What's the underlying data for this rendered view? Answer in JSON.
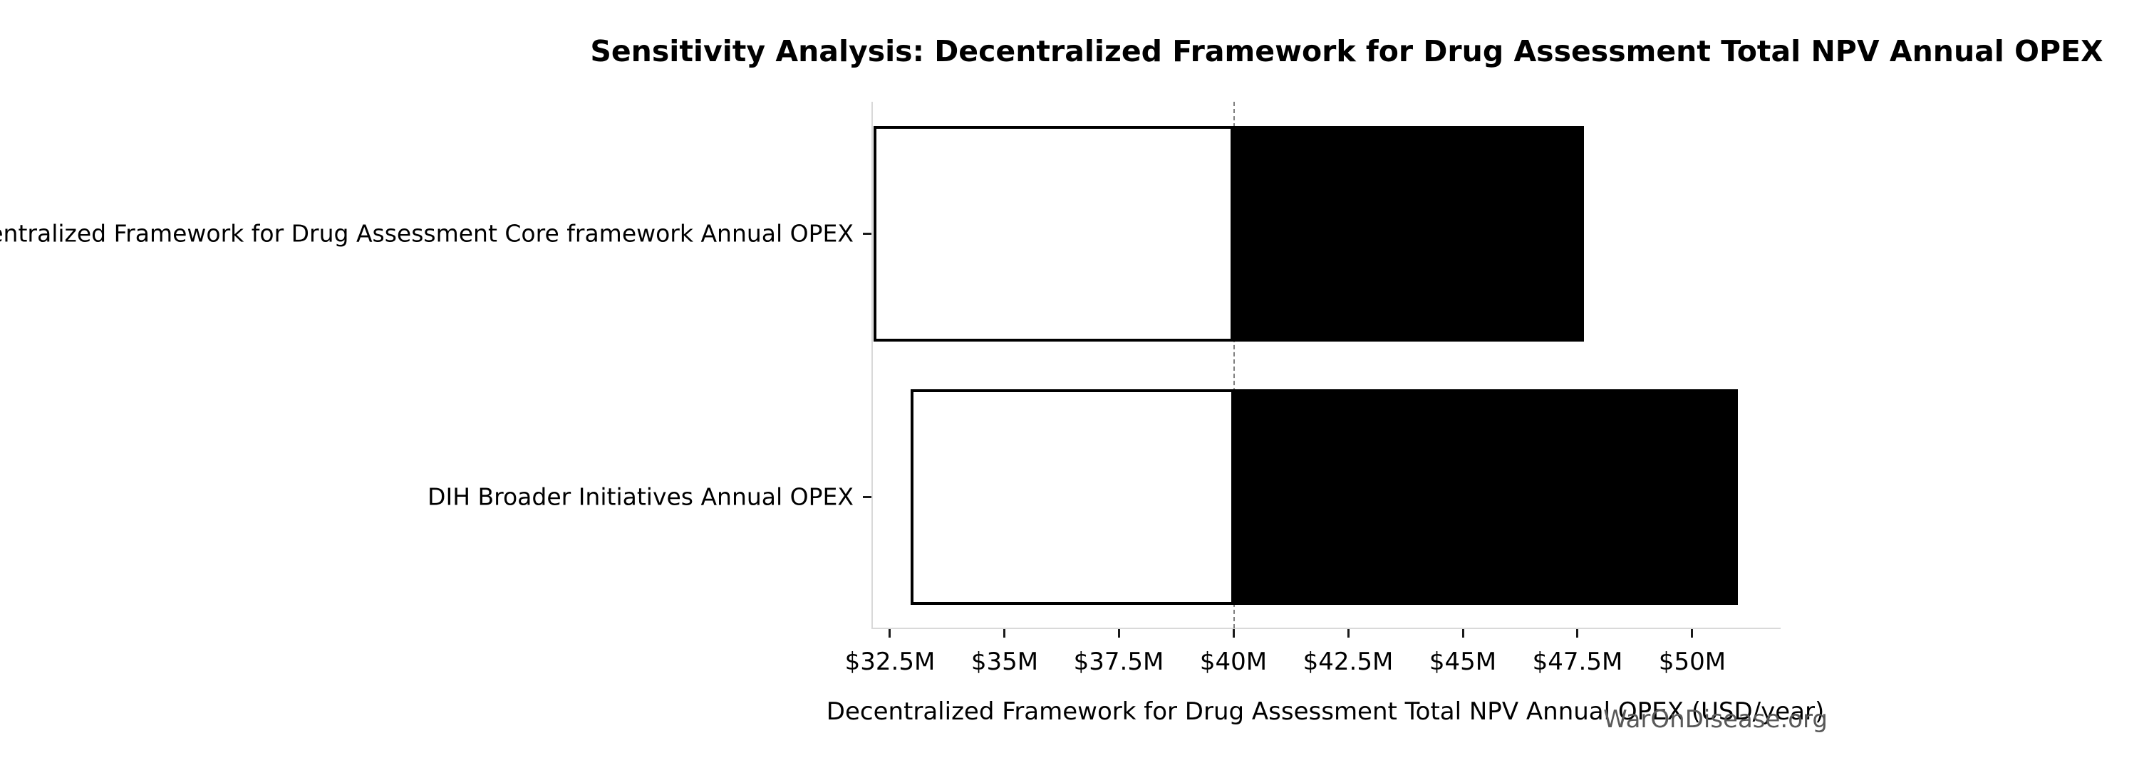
{
  "page": {
    "watermark": "WarOnDisease.org"
  },
  "chart_data": {
    "type": "bar",
    "orientation": "horizontal",
    "subtype": "tornado-sensitivity",
    "title": "Sensitivity Analysis: Decentralized Framework for Drug Assessment Total NPV Annual OPEX",
    "xlabel": "Decentralized Framework for Drug Assessment Total NPV Annual OPEX (USD/year)",
    "ylabel": "",
    "categories": [
      "Decentralized Framework for Drug Assessment Core framework Annual OPEX",
      "DIH Broader Initiatives Annual OPEX"
    ],
    "series": [
      {
        "name": "low-value-npv",
        "fill": "#ffffff",
        "values": [
          32.15,
          32.95
        ]
      },
      {
        "name": "high-value-npv",
        "fill": "#000000",
        "values": [
          47.65,
          51.0
        ]
      }
    ],
    "baseline": 40,
    "xlim": [
      32.1,
      51.9
    ],
    "xticks": [
      32.5,
      35,
      37.5,
      40,
      42.5,
      45,
      47.5,
      50
    ],
    "xtick_labels": [
      "$32.5M",
      "$35M",
      "$37.5M",
      "$40M",
      "$42.5M",
      "$45M",
      "$47.5M",
      "$50M"
    ],
    "grid": false,
    "legend": "none",
    "bar_height_fraction": 0.82,
    "colors": {
      "bar_edge": "#000000",
      "bar_low_fill": "#ffffff",
      "bar_high_fill": "#000000",
      "spine": "#d9d9d9",
      "baseline_line": "#7f7f7f",
      "text": "#000000",
      "watermark": "#595959"
    }
  }
}
